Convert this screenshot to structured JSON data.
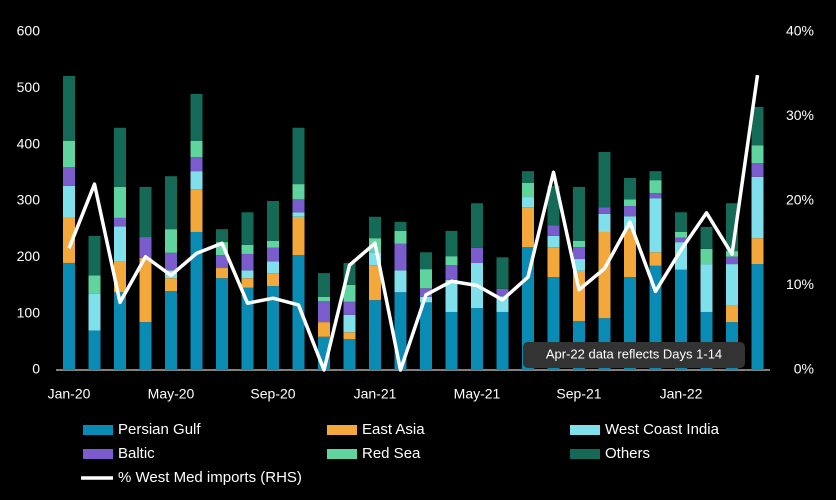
{
  "chart_data": {
    "type": "bar",
    "categories": [
      "Jan-20",
      null,
      null,
      null,
      "May-20",
      null,
      null,
      null,
      "Sep-20",
      null,
      null,
      null,
      "Jan-21",
      null,
      null,
      null,
      "May-21",
      null,
      null,
      null,
      "Sep-21",
      null,
      null,
      null,
      "Jan-22",
      null,
      null,
      null
    ],
    "stacked": true,
    "series": [
      {
        "name": "Persian Gulf",
        "color": "#0a8bb3",
        "values": [
          190,
          70,
          138,
          85,
          140,
          245,
          163,
          146,
          149,
          204,
          59,
          55,
          124,
          138,
          120,
          103,
          110,
          103,
          218,
          165,
          87,
          92,
          165,
          185,
          178,
          103,
          85,
          188
        ]
      },
      {
        "name": "East Asia",
        "color": "#f2a83a",
        "values": [
          80,
          0,
          54,
          114,
          23,
          76,
          18,
          17,
          23,
          68,
          26,
          12,
          62,
          0,
          0,
          0,
          0,
          0,
          71,
          53,
          89,
          153,
          84,
          24,
          0,
          0,
          29,
          46
        ]
      },
      {
        "name": "West Coast India",
        "color": "#7fe0ec",
        "values": [
          57,
          65,
          63,
          0,
          14,
          32,
          0,
          14,
          21,
          8,
          0,
          31,
          23,
          39,
          10,
          57,
          80,
          28,
          18,
          20,
          21,
          32,
          24,
          96,
          49,
          85,
          74,
          109
        ]
      },
      {
        "name": "Baltic",
        "color": "#7a5ccc",
        "values": [
          33,
          0,
          15,
          37,
          31,
          25,
          23,
          29,
          24,
          23,
          37,
          23,
          0,
          47,
          15,
          26,
          27,
          13,
          0,
          19,
          21,
          12,
          18,
          9,
          8,
          0,
          13,
          24
        ]
      },
      {
        "name": "Red Sea",
        "color": "#5fd49e",
        "values": [
          47,
          33,
          55,
          0,
          42,
          29,
          23,
          16,
          12,
          27,
          8,
          30,
          25,
          23,
          34,
          16,
          0,
          0,
          25,
          0,
          11,
          0,
          12,
          23,
          10,
          27,
          10,
          32
        ]
      },
      {
        "name": "Others",
        "color": "#146a56",
        "values": [
          115,
          70,
          105,
          89,
          94,
          83,
          23,
          58,
          71,
          100,
          42,
          39,
          38,
          16,
          30,
          45,
          79,
          56,
          21,
          70,
          96,
          98,
          38,
          16,
          35,
          39,
          85,
          68
        ]
      },
      {
        "name": "% West Med imports (RHS)",
        "color": "#ffffff",
        "type": "line",
        "axis": "y2",
        "values": [
          14.4,
          22,
          8,
          13.4,
          11.2,
          13.8,
          15,
          7.9,
          8.5,
          7.7,
          0,
          12.4,
          15,
          0,
          8.9,
          10.5,
          10,
          8.3,
          11,
          23.4,
          9.5,
          12,
          17.5,
          9.3,
          14.2,
          18.6,
          13.7,
          34.9
        ]
      }
    ],
    "ylim": [
      0,
      600
    ],
    "yticks": [
      0,
      100,
      200,
      300,
      400,
      500,
      600
    ],
    "y2lim": [
      0,
      40
    ],
    "y2ticks": [
      {
        "value": 0,
        "label": "0%"
      },
      {
        "value": 10,
        "label": "10%"
      },
      {
        "value": 20,
        "label": "20%"
      },
      {
        "value": 30,
        "label": "30%"
      },
      {
        "value": 40,
        "label": "40%"
      }
    ],
    "annotation": "Apr-22 data reflects Days 1-14"
  }
}
